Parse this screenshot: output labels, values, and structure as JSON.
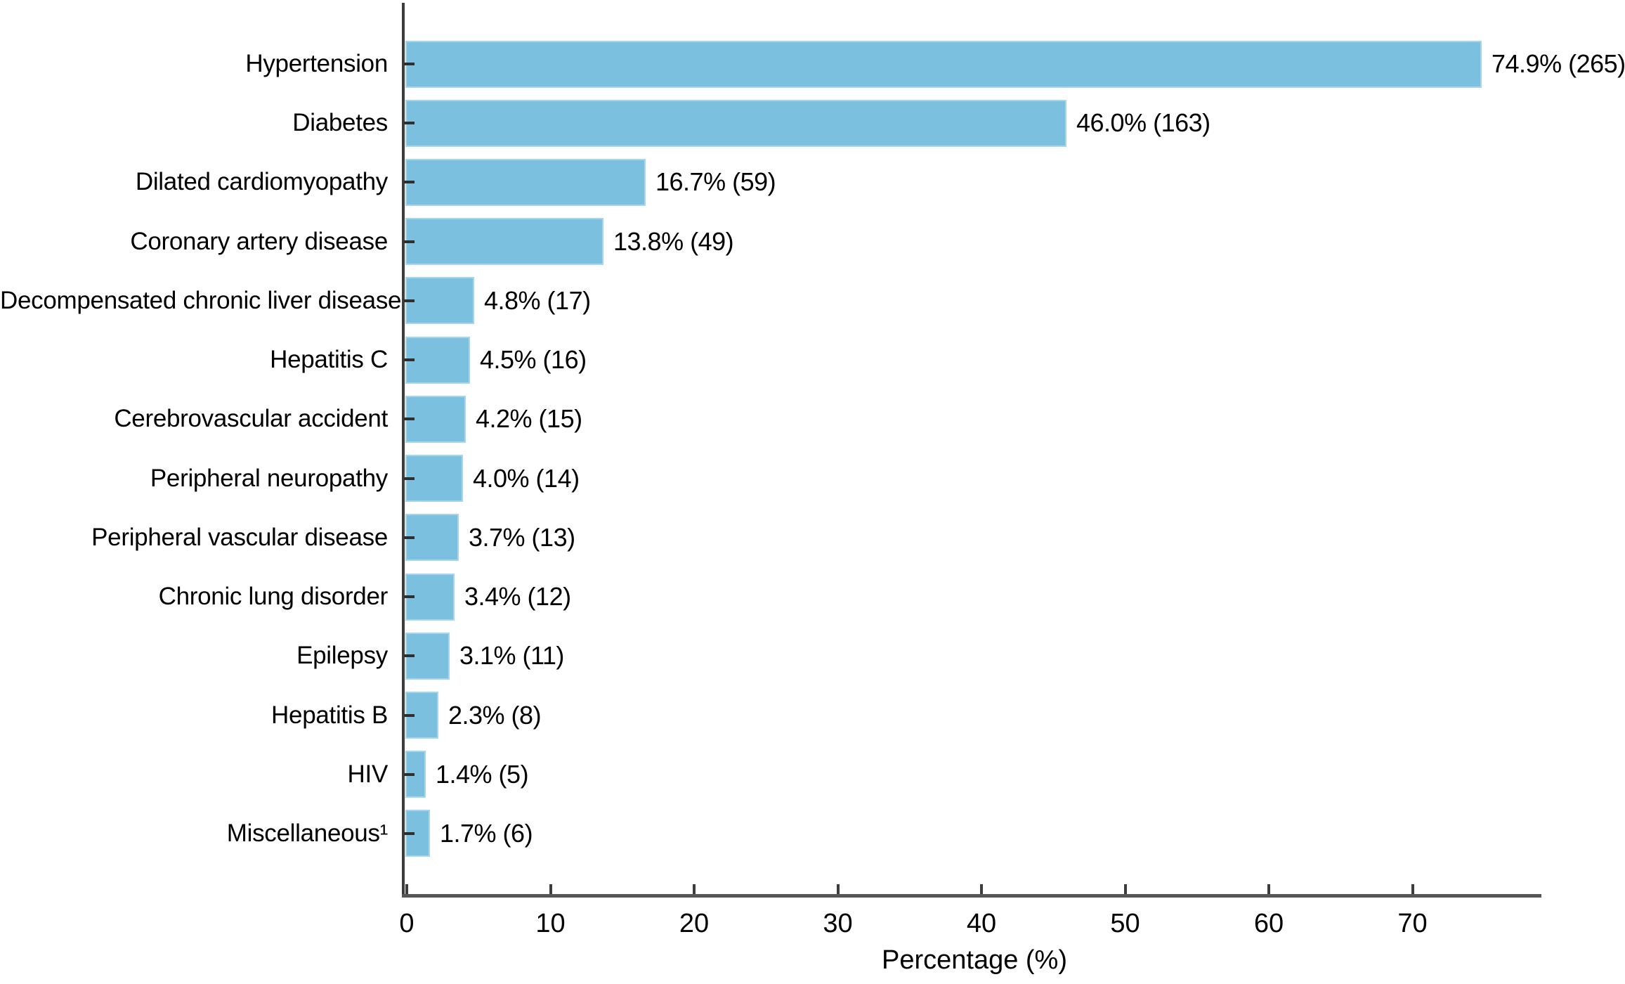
{
  "figure": {
    "background_color": "#ffffff",
    "bar_color": "#7cc0e0",
    "bar_edge_color": "#a6d5ec",
    "axis_color": "#3d3d3d",
    "text_color": "#000000"
  },
  "chart_data": {
    "type": "bar",
    "orientation": "horizontal",
    "title": "",
    "xlabel": "Percentage (%)",
    "ylabel": "",
    "xlim": [
      0,
      79
    ],
    "xticks": [
      0,
      10,
      20,
      30,
      40,
      50,
      60,
      70
    ],
    "grid": false,
    "legend_position": "none",
    "categories": [
      "Hypertension",
      "Diabetes",
      "Dilated cardiomyopathy",
      "Coronary artery disease",
      "Decompensated chronic liver disease",
      "Hepatitis C",
      "Cerebrovascular accident",
      "Peripheral neuropathy",
      "Peripheral vascular disease",
      "Chronic lung disorder",
      "Epilepsy",
      "Hepatitis B",
      "HIV",
      "Miscellaneous¹"
    ],
    "values": [
      74.9,
      46.0,
      16.7,
      13.8,
      4.8,
      4.5,
      4.2,
      4.0,
      3.7,
      3.4,
      3.1,
      2.3,
      1.4,
      1.7
    ],
    "counts": [
      265,
      163,
      59,
      49,
      17,
      16,
      15,
      14,
      13,
      12,
      11,
      8,
      5,
      6
    ],
    "bar_labels": [
      "74.9% (265)",
      "46.0% (163)",
      "16.7% (59)",
      "13.8% (49)",
      "4.8% (17)",
      "4.5% (16)",
      "4.2% (15)",
      "4.0% (14)",
      "3.7% (13)",
      "3.4% (12)",
      "3.1% (11)",
      "2.3% (8)",
      "1.4% (5)",
      "1.7% (6)"
    ]
  }
}
